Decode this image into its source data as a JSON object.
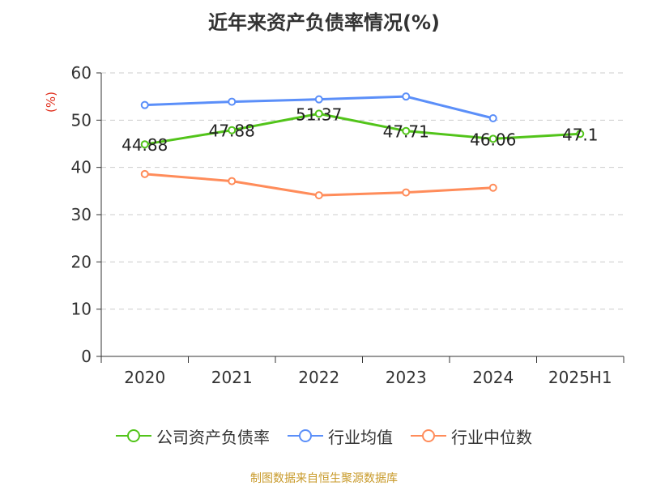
{
  "chart_data": {
    "type": "line",
    "title": "近年来资产负债率情况(%)",
    "ylabel": "(%)",
    "xlabel": "",
    "categories": [
      "2020",
      "2021",
      "2022",
      "2023",
      "2024",
      "2025H1"
    ],
    "ylim": [
      0,
      60
    ],
    "yticks": [
      0,
      10,
      20,
      30,
      40,
      50,
      60
    ],
    "grid": true,
    "legend_position": "bottom",
    "series": [
      {
        "name": "公司资产负债率",
        "color": "#52c41a",
        "values": [
          44.88,
          47.88,
          51.37,
          47.71,
          46.06,
          47.1
        ],
        "labels": [
          "44.88",
          "47.88",
          "51.37",
          "47.71",
          "46.06",
          "47.1"
        ]
      },
      {
        "name": "行业均值",
        "color": "#5b8ff9",
        "values": [
          53.2,
          53.9,
          54.4,
          55.0,
          50.4,
          null
        ]
      },
      {
        "name": "行业中位数",
        "color": "#ff8c5a",
        "values": [
          38.6,
          37.1,
          34.1,
          34.7,
          35.7,
          null
        ]
      }
    ]
  },
  "source": "制图数据来自恒生聚源数据库"
}
